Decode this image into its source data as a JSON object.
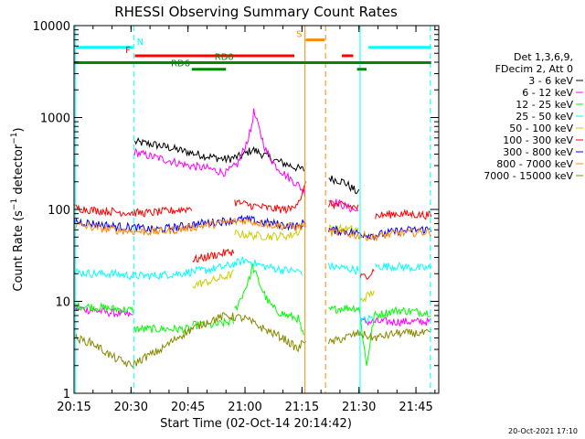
{
  "chart_data": {
    "type": "line",
    "title": "RHESSI Observing Summary Count Rates",
    "xlabel": "Start Time (02-Oct-14 20:14:42)",
    "ylabel": "Count Rate (s⁻¹ detector⁻¹)",
    "ylabel_main": "Count Rate (s",
    "ylabel_sup1": "−1",
    "ylabel_mid": " detector",
    "ylabel_sup2": "−1",
    "ylabel_end": ")",
    "y_scale": "log",
    "ylim": [
      1,
      10000
    ],
    "xlim_min": [
      15,
      111
    ],
    "x_ticks": [
      {
        "label": "20:15",
        "min": 15
      },
      {
        "label": "20:30",
        "min": 30
      },
      {
        "label": "20:45",
        "min": 45
      },
      {
        "label": "21:00",
        "min": 60
      },
      {
        "label": "21:15",
        "min": 75
      },
      {
        "label": "21:30",
        "min": 90
      },
      {
        "label": "21:45",
        "min": 105
      }
    ],
    "y_ticks": [
      {
        "label": "1",
        "value": 1
      },
      {
        "label": "10",
        "value": 10
      },
      {
        "label": "100",
        "value": 100
      },
      {
        "label": "1000",
        "value": 1000
      },
      {
        "label": "10000",
        "value": 10000
      }
    ],
    "legend_header": [
      "Det 1,3,6,9,",
      "FDecim 2, Att 0"
    ],
    "series": [
      {
        "name": "3 - 6 keV",
        "color": "#000000",
        "segments": [
          [
            [
              31,
              540
            ],
            [
              36,
              510
            ],
            [
              40,
              470
            ],
            [
              45,
              420
            ],
            [
              50,
              380
            ],
            [
              55,
              350
            ],
            [
              59,
              380
            ],
            [
              62,
              450
            ],
            [
              65,
              390
            ],
            [
              68,
              340
            ],
            [
              71,
              310
            ],
            [
              74,
              280
            ],
            [
              75.5,
              270
            ]
          ],
          [
            [
              82,
              220
            ],
            [
              86,
              200
            ],
            [
              89,
              160
            ],
            [
              90,
              150
            ]
          ]
        ]
      },
      {
        "name": "6 - 12 keV",
        "color": "#ff00ff",
        "segments": [
          [
            [
              15,
              8.5
            ],
            [
              30.5,
              7
            ]
          ],
          [
            [
              30.9,
              420
            ],
            [
              35,
              380
            ],
            [
              40,
              340
            ],
            [
              45,
              300
            ],
            [
              50,
              280
            ],
            [
              55,
              250
            ],
            [
              58,
              310
            ],
            [
              60,
              480
            ],
            [
              61.5,
              720
            ],
            [
              62.3,
              1150
            ],
            [
              63.5,
              800
            ],
            [
              65.5,
              440
            ],
            [
              68,
              300
            ],
            [
              71,
              230
            ],
            [
              74,
              185
            ],
            [
              75.8,
              150
            ]
          ],
          [
            [
              82,
              130
            ],
            [
              86,
              110
            ],
            [
              89.8,
              95
            ]
          ],
          [
            [
              90.3,
              6
            ],
            [
              93,
              6
            ],
            [
              96,
              6
            ],
            [
              100,
              6
            ],
            [
              104,
              6
            ],
            [
              108,
              6
            ],
            [
              109,
              6
            ]
          ]
        ]
      },
      {
        "name": "12 - 25 keV",
        "color": "#00ff00",
        "segments": [
          [
            [
              15,
              9
            ],
            [
              30.5,
              8
            ]
          ],
          [
            [
              30.9,
              5
            ],
            [
              38,
              5
            ],
            [
              46,
              5
            ]
          ],
          [
            [
              46.2,
              5.5
            ],
            [
              52,
              5.5
            ],
            [
              56,
              6
            ],
            [
              57,
              6
            ]
          ],
          [
            [
              57.3,
              8
            ],
            [
              59,
              11
            ],
            [
              61,
              17
            ],
            [
              62,
              24
            ],
            [
              64,
              15
            ],
            [
              66,
              10
            ],
            [
              68,
              8
            ],
            [
              71,
              7
            ],
            [
              74,
              6.5
            ],
            [
              75.5,
              4
            ]
          ],
          [
            [
              82,
              8
            ],
            [
              86,
              8.5
            ],
            [
              90,
              8.5
            ],
            [
              92,
              2
            ],
            [
              94,
              7
            ],
            [
              100,
              8
            ],
            [
              109,
              7.5
            ]
          ]
        ]
      },
      {
        "name": "25 - 50 keV",
        "color": "#00ffff",
        "segments": [
          [
            [
              15,
              21
            ],
            [
              20,
              20
            ],
            [
              25,
              20
            ],
            [
              30,
              19
            ],
            [
              36,
              19
            ],
            [
              42,
              20
            ],
            [
              46,
              21
            ],
            [
              50,
              22
            ],
            [
              55,
              24
            ],
            [
              60,
              28
            ],
            [
              65,
              24
            ],
            [
              70,
              22
            ],
            [
              75,
              21
            ]
          ],
          [
            [
              82,
              24
            ],
            [
              86,
              23
            ],
            [
              89.8,
              22
            ]
          ],
          [
            [
              90.3,
              6
            ],
            [
              93,
              6.5
            ],
            [
              94,
              6.5
            ]
          ],
          [
            [
              94.3,
              24
            ],
            [
              100,
              24
            ],
            [
              105,
              23
            ],
            [
              109,
              23
            ]
          ]
        ]
      },
      {
        "name": "50 - 100 keV",
        "color": "#cccc00",
        "segments": [
          [
            [
              46.2,
              15
            ],
            [
              52,
              17
            ],
            [
              57,
              20
            ]
          ],
          [
            [
              57.3,
              55
            ],
            [
              62,
              52
            ],
            [
              67,
              51
            ],
            [
              72,
              52
            ],
            [
              75,
              60
            ]
          ],
          [
            [
              82,
              62
            ],
            [
              86,
              61
            ],
            [
              89.8,
              60
            ]
          ],
          [
            [
              90.3,
              10
            ],
            [
              94,
              13
            ]
          ]
        ]
      },
      {
        "name": "100 - 300 keV",
        "color": "#ff0000",
        "segments": [
          [
            [
              15,
              105
            ],
            [
              20,
              98
            ],
            [
              25,
              95
            ],
            [
              30,
              92
            ],
            [
              35,
              92
            ],
            [
              40,
              96
            ],
            [
              45,
              102
            ],
            [
              46,
              105
            ]
          ],
          [
            [
              46.2,
              28
            ],
            [
              52,
              32
            ],
            [
              57,
              35
            ]
          ],
          [
            [
              57.3,
              120
            ],
            [
              62,
              110
            ],
            [
              67,
              102
            ],
            [
              72,
              100
            ],
            [
              75,
              140
            ],
            [
              76,
              190
            ]
          ],
          [
            [
              82,
              115
            ],
            [
              86,
              110
            ],
            [
              89.8,
              105
            ]
          ],
          [
            [
              90.3,
              18
            ],
            [
              93,
              20
            ],
            [
              94,
              22
            ]
          ],
          [
            [
              94.3,
              85
            ],
            [
              100,
              90
            ],
            [
              105,
              88
            ],
            [
              109,
              86
            ]
          ]
        ]
      },
      {
        "name": "300 - 800 keV",
        "color": "#0000ff",
        "segments": [
          [
            [
              15,
              75
            ],
            [
              20,
              70
            ],
            [
              25,
              66
            ],
            [
              30,
              64
            ],
            [
              36,
              60
            ],
            [
              42,
              64
            ],
            [
              48,
              70
            ],
            [
              55,
              75
            ],
            [
              60,
              78
            ],
            [
              65,
              72
            ],
            [
              70,
              68
            ],
            [
              74,
              65
            ],
            [
              76,
              75
            ]
          ],
          [
            [
              82,
              60
            ],
            [
              86,
              58
            ],
            [
              90,
              55
            ],
            [
              94,
              52
            ],
            [
              100,
              58
            ],
            [
              105,
              60
            ],
            [
              109,
              61
            ]
          ]
        ]
      },
      {
        "name": "800 - 7000 keV",
        "color": "#ff8800",
        "segments": [
          [
            [
              15,
              68
            ],
            [
              20,
              64
            ],
            [
              25,
              60
            ],
            [
              30,
              58
            ],
            [
              36,
              57
            ],
            [
              42,
              60
            ],
            [
              48,
              66
            ],
            [
              55,
              72
            ],
            [
              60,
              76
            ],
            [
              65,
              70
            ],
            [
              70,
              66
            ],
            [
              74,
              64
            ],
            [
              76,
              70
            ]
          ],
          [
            [
              82,
              57
            ],
            [
              86,
              55
            ],
            [
              90,
              52
            ],
            [
              94,
              50
            ],
            [
              100,
              55
            ],
            [
              105,
              56
            ],
            [
              109,
              57
            ]
          ]
        ]
      },
      {
        "name": "7000 - 15000 keV",
        "color": "#888800",
        "segments": [
          [
            [
              15,
              4
            ],
            [
              20,
              3.5
            ],
            [
              25,
              2.5
            ],
            [
              30,
              2
            ],
            [
              34,
              2.5
            ],
            [
              38,
              3
            ],
            [
              42,
              4
            ],
            [
              46,
              5
            ],
            [
              50,
              6
            ],
            [
              55,
              7
            ],
            [
              60,
              6.5
            ],
            [
              65,
              5
            ],
            [
              70,
              4
            ],
            [
              74,
              3
            ],
            [
              76,
              4
            ]
          ],
          [
            [
              82,
              3.5
            ],
            [
              86,
              4
            ],
            [
              90,
              4.5
            ],
            [
              94,
              4
            ],
            [
              100,
              4.5
            ],
            [
              105,
              4.5
            ],
            [
              109,
              4.5
            ]
          ]
        ]
      }
    ],
    "flag_bars": [
      {
        "label": "N",
        "color": "#00ffff",
        "y": 5800,
        "segments": [
          [
            15.5,
            30.5
          ],
          [
            92.5,
            109
          ]
        ],
        "label_min": 31.5
      },
      {
        "label": "S",
        "color": "#ff8800",
        "y": 7000,
        "segments": [
          [
            76,
            81
          ]
        ],
        "label_min": 73.5
      },
      {
        "label": "F",
        "color": "#ff0000",
        "y": 4700,
        "segments": [
          [
            31,
            73
          ],
          [
            85.5,
            88.5
          ]
        ],
        "label_min": 28.5
      },
      {
        "label": "RD0",
        "color": "#008800",
        "y": 3950,
        "segments": [
          [
            15,
            109
          ]
        ],
        "label_min": 52
      },
      {
        "label": "RD6",
        "color": "#008800",
        "y": 3350,
        "segments": [
          [
            46,
            55
          ],
          [
            89.5,
            92
          ]
        ],
        "label_min": 40.5
      }
    ],
    "vlines": [
      {
        "min": 15.3,
        "color": "#00ffff",
        "dash": false
      },
      {
        "min": 30.7,
        "color": "#00ffff",
        "dash": true
      },
      {
        "min": 75.8,
        "color": "#ff8800",
        "dash": false
      },
      {
        "min": 81.2,
        "color": "#ff8800",
        "dash": true
      },
      {
        "min": 90.3,
        "color": "#00ffff",
        "dash": false
      },
      {
        "min": 108.8,
        "color": "#00ffff",
        "dash": true
      }
    ],
    "footer_date": "20-Oct-2021 17:10"
  }
}
